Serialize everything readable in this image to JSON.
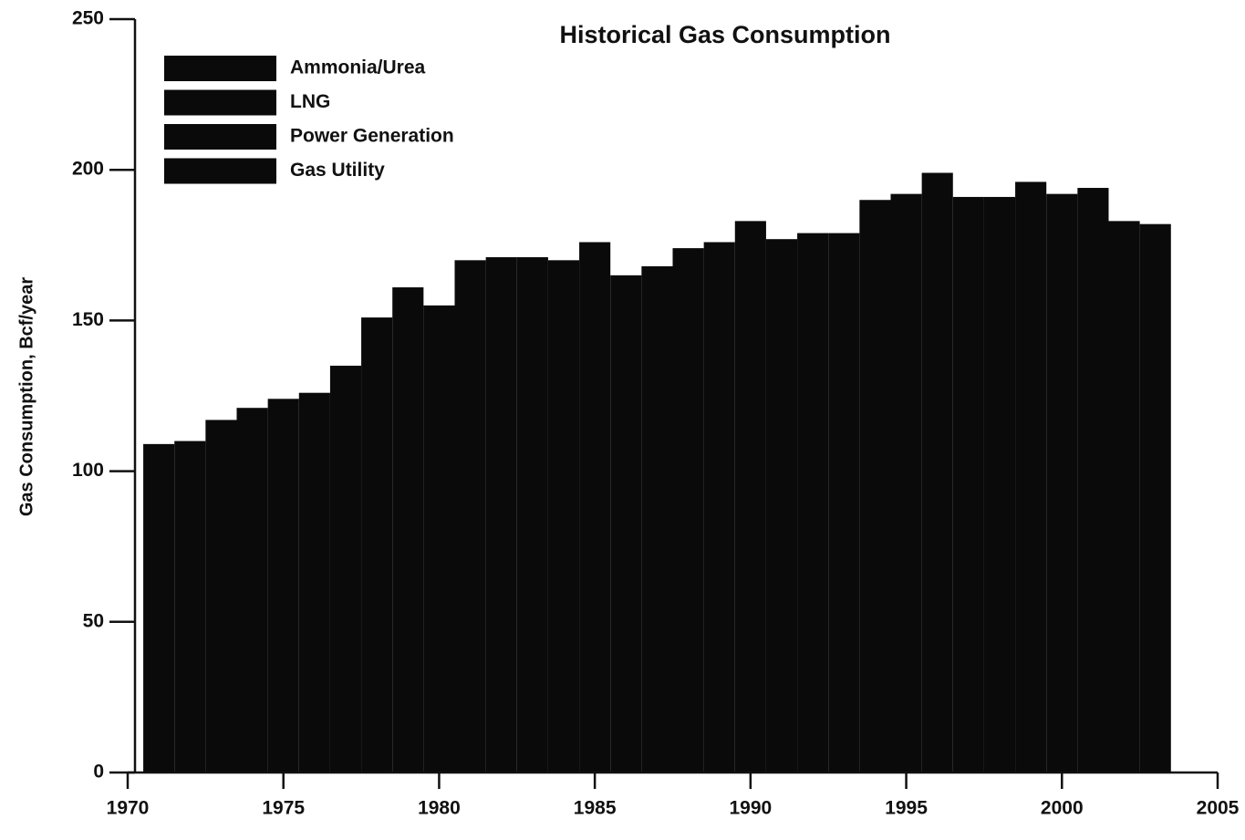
{
  "chart_data": {
    "type": "bar",
    "title": "Historical Gas Consumption",
    "y_label": "Gas Consumption, Bcf/year",
    "x": [
      1971,
      1972,
      1973,
      1974,
      1975,
      1976,
      1977,
      1978,
      1979,
      1980,
      1981,
      1982,
      1983,
      1984,
      1985,
      1986,
      1987,
      1988,
      1989,
      1990,
      1991,
      1992,
      1993,
      1994,
      1995,
      1996,
      1997,
      1998,
      1999,
      2000,
      2001,
      2002,
      2003
    ],
    "values": [
      109,
      110,
      117,
      121,
      124,
      126,
      135,
      151,
      161,
      155,
      170,
      171,
      171,
      170,
      176,
      165,
      168,
      174,
      176,
      183,
      177,
      179,
      179,
      190,
      192,
      199,
      191,
      191,
      196,
      192,
      194,
      183,
      182
    ],
    "color": "#0a0a0a",
    "legend": [
      {
        "name": "Ammonia/Urea",
        "color": "#0a0a0a"
      },
      {
        "name": "LNG",
        "color": "#0a0a0a"
      },
      {
        "name": "Power Generation",
        "color": "#0a0a0a"
      },
      {
        "name": "Gas Utility",
        "color": "#0a0a0a"
      }
    ],
    "xlim": [
      1970,
      2005
    ],
    "xticks": [
      1970,
      1975,
      1980,
      1985,
      1990,
      1995,
      2000,
      2005
    ],
    "ylim": [
      0,
      250
    ],
    "yticks": [
      0,
      50,
      100,
      150,
      200,
      250
    ]
  }
}
